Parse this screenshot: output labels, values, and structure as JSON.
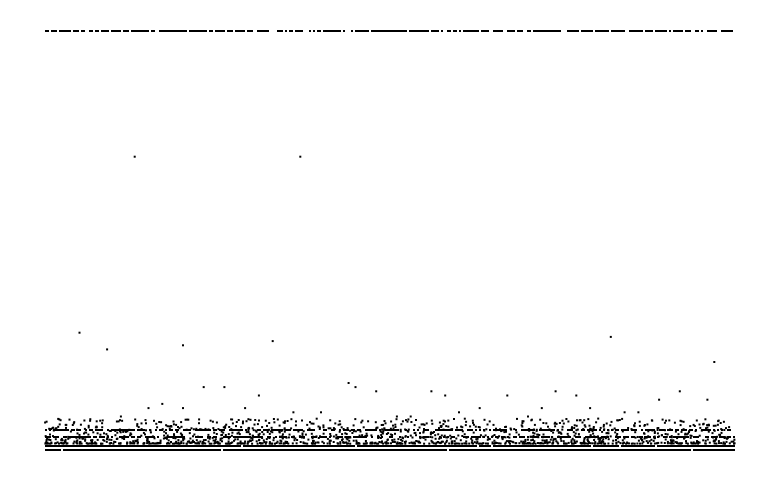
{
  "chart_data": {
    "type": "scatter",
    "title": "",
    "xlabel": "",
    "ylabel": "",
    "grid": false,
    "legend": "none",
    "axes_visible": false,
    "marker_color": "#000000",
    "marker": "square-dot",
    "xlim": [
      0,
      100
    ],
    "ylim": [
      0,
      100
    ],
    "clusters": {
      "top_band_y": 100,
      "bottom_dense_band_y": [
        0.5,
        1.5
      ],
      "lower_scatter_y_max": 12
    },
    "series": [
      {
        "points": [
          [
            13,
            70
          ],
          [
            37,
            70
          ],
          [
            5,
            28
          ],
          [
            9,
            24
          ],
          [
            20,
            25
          ],
          [
            33,
            26
          ],
          [
            82,
            27
          ],
          [
            97,
            21
          ],
          [
            23,
            15
          ],
          [
            26,
            15
          ],
          [
            44,
            16
          ],
          [
            45,
            15
          ],
          [
            48,
            14
          ],
          [
            56,
            14
          ],
          [
            31,
            13
          ],
          [
            58,
            13
          ],
          [
            67,
            13
          ],
          [
            74,
            14
          ],
          [
            77,
            13
          ],
          [
            89,
            12
          ],
          [
            92,
            14
          ],
          [
            96,
            12
          ],
          [
            15,
            10
          ],
          [
            17,
            11
          ],
          [
            20,
            10
          ],
          [
            29,
            10
          ],
          [
            36,
            9
          ],
          [
            40,
            9
          ],
          [
            51,
            8
          ],
          [
            53,
            8
          ],
          [
            60,
            9
          ],
          [
            63,
            10
          ],
          [
            70,
            8
          ],
          [
            72,
            10
          ],
          [
            79,
            10
          ],
          [
            84,
            9
          ],
          [
            86,
            9
          ],
          [
            88,
            7
          ],
          [
            3,
            6
          ],
          [
            8,
            7
          ],
          [
            11,
            8
          ],
          [
            14,
            5
          ],
          [
            19,
            6
          ],
          [
            24,
            7
          ],
          [
            27,
            5
          ],
          [
            32,
            7
          ],
          [
            38,
            6
          ],
          [
            42,
            5
          ],
          [
            46,
            7
          ],
          [
            49,
            6
          ],
          [
            55,
            6
          ],
          [
            59,
            5
          ],
          [
            62,
            7
          ],
          [
            65,
            6
          ],
          [
            68,
            5
          ],
          [
            71,
            6
          ],
          [
            75,
            7
          ],
          [
            78,
            5
          ],
          [
            81,
            6
          ],
          [
            85,
            5
          ],
          [
            90,
            7
          ],
          [
            94,
            6
          ],
          [
            98,
            5
          ]
        ]
      }
    ]
  }
}
